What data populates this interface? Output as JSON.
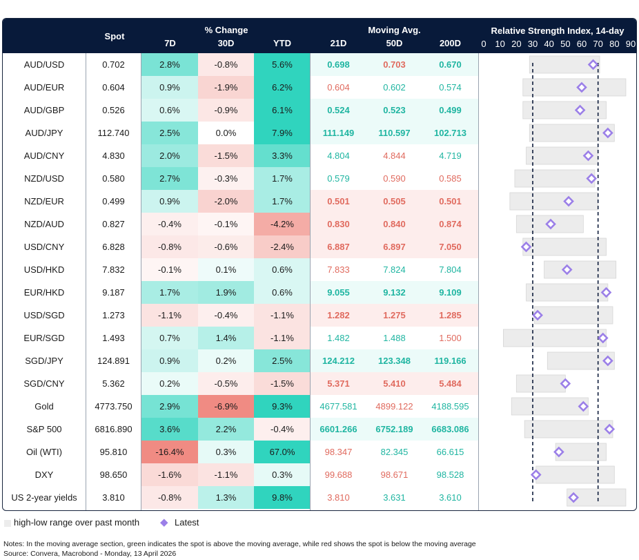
{
  "header": {
    "spot": "Spot",
    "pct_change_group": "% Change",
    "pct_cols": [
      "7D",
      "30D",
      "YTD"
    ],
    "ma_group": "Moving Avg.",
    "ma_cols": [
      "21D",
      "50D",
      "200D"
    ],
    "rsi_title": "Relative Strength Index, 14-day",
    "rsi_ticks": [
      "0",
      "10",
      "20",
      "30",
      "40",
      "50",
      "60",
      "70",
      "80",
      "90"
    ]
  },
  "colors": {
    "header_bg": "#081a3a",
    "green_text": "#1fb5a1",
    "red_text": "#e06a5e",
    "range_bar": "#ececec",
    "diamond": "#9b7fe8"
  },
  "chart_data": {
    "type": "table",
    "title": "Relative Strength Index, 14-day",
    "rsi_axis": [
      0,
      90
    ],
    "rsi_ticks": [
      0,
      10,
      20,
      30,
      40,
      50,
      60,
      70,
      80,
      90
    ],
    "rsi_reference_lines": [
      30,
      70
    ],
    "rows": [
      {
        "name": "AUD/USD",
        "spot": "0.702",
        "d7": "2.8%",
        "d30": "-0.8%",
        "ytd": "5.6%",
        "ma21": "0.698",
        "ma50": "0.703",
        "ma200": "0.670",
        "ma_above": true,
        "rsi_low": 28,
        "rsi_high": 71,
        "rsi": 67
      },
      {
        "name": "AUD/EUR",
        "spot": "0.604",
        "d7": "0.9%",
        "d30": "-1.9%",
        "ytd": "6.2%",
        "ma21": "0.604",
        "ma50": "0.602",
        "ma200": "0.574",
        "ma_above": false,
        "rsi_low": 24,
        "rsi_high": 87,
        "rsi": 60
      },
      {
        "name": "AUD/GBP",
        "spot": "0.526",
        "d7": "0.6%",
        "d30": "-0.9%",
        "ytd": "6.1%",
        "ma21": "0.524",
        "ma50": "0.523",
        "ma200": "0.499",
        "ma_above": true,
        "rsi_low": 24,
        "rsi_high": 75,
        "rsi": 59
      },
      {
        "name": "AUD/JPY",
        "spot": "112.740",
        "d7": "2.5%",
        "d30": "0.0%",
        "ytd": "7.9%",
        "ma21": "111.149",
        "ma50": "110.597",
        "ma200": "102.713",
        "ma_above": true,
        "rsi_low": 28,
        "rsi_high": 80,
        "rsi": 76
      },
      {
        "name": "AUD/CNY",
        "spot": "4.830",
        "d7": "2.0%",
        "d30": "-1.5%",
        "ytd": "3.3%",
        "ma21": "4.804",
        "ma50": "4.844",
        "ma200": "4.719",
        "ma_above": false,
        "rsi_low": 26,
        "rsi_high": 70,
        "rsi": 64
      },
      {
        "name": "NZD/USD",
        "spot": "0.580",
        "d7": "2.7%",
        "d30": "-0.3%",
        "ytd": "1.7%",
        "ma21": "0.579",
        "ma50": "0.590",
        "ma200": "0.585",
        "ma_above": false,
        "rsi_low": 19,
        "rsi_high": 68,
        "rsi": 66
      },
      {
        "name": "NZD/EUR",
        "spot": "0.499",
        "d7": "0.9%",
        "d30": "-2.0%",
        "ytd": "1.7%",
        "ma21": "0.501",
        "ma50": "0.505",
        "ma200": "0.501",
        "ma_above": false,
        "rsi_low": 16,
        "rsi_high": 70,
        "rsi": 52
      },
      {
        "name": "NZD/AUD",
        "spot": "0.827",
        "d7": "-0.4%",
        "d30": "-0.1%",
        "ytd": "-4.2%",
        "ma21": "0.830",
        "ma50": "0.840",
        "ma200": "0.874",
        "ma_above": false,
        "rsi_low": 20,
        "rsi_high": 61,
        "rsi": 41
      },
      {
        "name": "USD/CNY",
        "spot": "6.828",
        "d7": "-0.8%",
        "d30": "-0.6%",
        "ytd": "-2.4%",
        "ma21": "6.887",
        "ma50": "6.897",
        "ma200": "7.050",
        "ma_above": false,
        "rsi_low": 24,
        "rsi_high": 75,
        "rsi": 26
      },
      {
        "name": "USD/HKD",
        "spot": "7.832",
        "d7": "-0.1%",
        "d30": "0.1%",
        "ytd": "0.6%",
        "ma21": "7.833",
        "ma50": "7.824",
        "ma200": "7.804",
        "ma_above": false,
        "rsi_low": 37,
        "rsi_high": 81,
        "rsi": 51
      },
      {
        "name": "EUR/HKD",
        "spot": "9.187",
        "d7": "1.7%",
        "d30": "1.9%",
        "ytd": "0.6%",
        "ma21": "9.055",
        "ma50": "9.132",
        "ma200": "9.109",
        "ma_above": true,
        "rsi_low": 26,
        "rsi_high": 76,
        "rsi": 75
      },
      {
        "name": "USD/SGD",
        "spot": "1.273",
        "d7": "-1.1%",
        "d30": "-0.4%",
        "ytd": "-1.1%",
        "ma21": "1.282",
        "ma50": "1.275",
        "ma200": "1.285",
        "ma_above": false,
        "rsi_low": 31,
        "rsi_high": 79,
        "rsi": 33
      },
      {
        "name": "EUR/SGD",
        "spot": "1.493",
        "d7": "0.7%",
        "d30": "1.4%",
        "ytd": "-1.1%",
        "ma21": "1.482",
        "ma50": "1.488",
        "ma200": "1.500",
        "ma_above": false,
        "rsi_low": 12,
        "rsi_high": 75,
        "rsi": 73
      },
      {
        "name": "SGD/JPY",
        "spot": "124.891",
        "d7": "0.9%",
        "d30": "0.2%",
        "ytd": "2.5%",
        "ma21": "124.212",
        "ma50": "123.348",
        "ma200": "119.166",
        "ma_above": true,
        "rsi_low": 39,
        "rsi_high": 80,
        "rsi": 76
      },
      {
        "name": "SGD/CNY",
        "spot": "5.362",
        "d7": "0.2%",
        "d30": "-0.5%",
        "ytd": "-1.5%",
        "ma21": "5.371",
        "ma50": "5.410",
        "ma200": "5.484",
        "ma_above": false,
        "rsi_low": 20,
        "rsi_high": 50,
        "rsi": 50
      },
      {
        "name": "Gold",
        "spot": "4773.750",
        "d7": "2.9%",
        "d30": "-6.9%",
        "ytd": "9.3%",
        "ma21": "4677.581",
        "ma50": "4899.122",
        "ma200": "4188.595",
        "ma_above": "mixed",
        "rsi_low": 17,
        "rsi_high": 64,
        "rsi": 61
      },
      {
        "name": "S&P 500",
        "spot": "6816.890",
        "d7": "3.6%",
        "d30": "2.2%",
        "ytd": "-0.4%",
        "ma21": "6601.266",
        "ma50": "6752.189",
        "ma200": "6683.086",
        "ma_above": true,
        "rsi_low": 25,
        "rsi_high": 79,
        "rsi": 77
      },
      {
        "name": "Oil (WTI)",
        "spot": "95.810",
        "d7": "-16.4%",
        "d30": "0.3%",
        "ytd": "67.0%",
        "ma21": "98.347",
        "ma50": "82.345",
        "ma200": "66.615",
        "ma_above": "mixed",
        "rsi_low": 44,
        "rsi_high": 75,
        "rsi": 46
      },
      {
        "name": "DXY",
        "spot": "98.650",
        "d7": "-1.6%",
        "d30": "-1.1%",
        "ytd": "0.3%",
        "ma21": "99.688",
        "ma50": "98.671",
        "ma200": "98.528",
        "ma_above": "mixed",
        "rsi_low": 32,
        "rsi_high": 80,
        "rsi": 32
      },
      {
        "name": "US 2-year yields",
        "spot": "3.810",
        "d7": "-0.8%",
        "d30": "1.3%",
        "ytd": "9.8%",
        "ma21": "3.810",
        "ma50": "3.631",
        "ma200": "3.610",
        "ma_above": "mixed",
        "rsi_low": 51,
        "rsi_high": 87,
        "rsi": 55
      }
    ]
  },
  "legend": {
    "range_label": "high-low range over past month",
    "latest_label": "Latest"
  },
  "notes": {
    "line1": "Notes: In the moving average section, green indicates the spot is above the moving average, while red shows the spot is below the moving average",
    "line2": "Source: Convera, Macrobond - Monday, 13 April 2026"
  }
}
